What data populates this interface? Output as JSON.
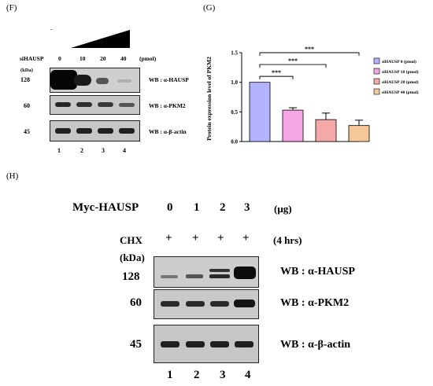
{
  "panel_F": {
    "label": "(F)",
    "dash": "-",
    "sihausp_label": "siHAUSP",
    "doses": [
      "0",
      "10",
      "20",
      "40"
    ],
    "unit": "(pmol)",
    "kda_label": "(kDa)",
    "blots": [
      {
        "mw": "128",
        "label": "WB : α-HAUSP",
        "intensities": [
          1.0,
          0.55,
          0.35,
          0.28
        ]
      },
      {
        "mw": "60",
        "label": "WB : α-PKM2",
        "intensities": [
          0.75,
          0.7,
          0.65,
          0.5
        ]
      },
      {
        "mw": "45",
        "label": "WB : α-β-actin",
        "intensities": [
          0.8,
          0.8,
          0.8,
          0.8
        ]
      }
    ],
    "lanes": [
      "1",
      "2",
      "3",
      "4"
    ]
  },
  "panel_G": {
    "label": "(G)",
    "chart_data": {
      "type": "bar",
      "categories": [
        "siHAUSP 0 (pmol)",
        "siHAUSP 10 (pmol)",
        "siHAUSP 20 (pmol)",
        "siHAUSP 40 (pmol)"
      ],
      "values": [
        1.0,
        0.53,
        0.37,
        0.27
      ],
      "errors": [
        0.0,
        0.04,
        0.11,
        0.09
      ],
      "colors": [
        "#b3b3ff",
        "#f5a6e6",
        "#f5a8a8",
        "#f5c89a"
      ],
      "ylabel": "Protein expression level of PKM2",
      "ylim": [
        0,
        1.5
      ],
      "yticks": [
        "0.0",
        "0.5",
        "1.0",
        "1.5"
      ],
      "significance": [
        {
          "from": 0,
          "to": 1,
          "label": "***"
        },
        {
          "from": 0,
          "to": 2,
          "label": "***"
        },
        {
          "from": 0,
          "to": 3,
          "label": "***"
        }
      ],
      "legend_position": "right"
    }
  },
  "panel_H": {
    "label": "(H)",
    "myc_label": "Myc-HAUSP",
    "doses": [
      "0",
      "1",
      "2",
      "3"
    ],
    "unit": "(μg)",
    "chx_label": "CHX",
    "chx_marks": [
      "+",
      "+",
      "+",
      "+"
    ],
    "chx_time": "(4 hrs)",
    "kda_label": "(kDa)",
    "blots": [
      {
        "mw": "128",
        "label": "WB : α-HAUSP",
        "intensities": [
          0.25,
          0.4,
          0.75,
          1.0
        ]
      },
      {
        "mw": "60",
        "label": "WB : α-PKM2",
        "intensities": [
          0.75,
          0.75,
          0.75,
          0.9
        ]
      },
      {
        "mw": "45",
        "label": "WB : α-β-actin",
        "intensities": [
          0.85,
          0.85,
          0.85,
          0.85
        ]
      }
    ],
    "lanes": [
      "1",
      "2",
      "3",
      "4"
    ]
  }
}
